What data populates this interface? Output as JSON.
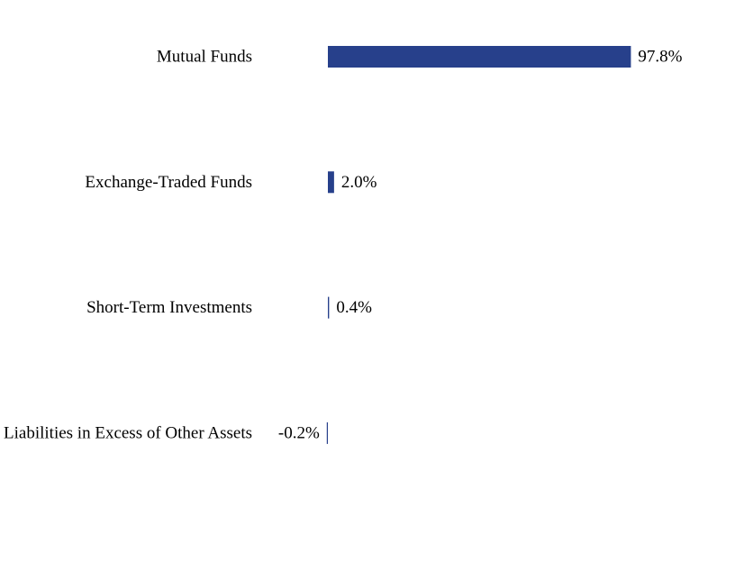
{
  "chart_data": {
    "type": "bar",
    "orientation": "horizontal",
    "categories": [
      "Mutual Funds",
      "Exchange-Traded Funds",
      "Short-Term Investments",
      "Liabilities in Excess of Other Assets"
    ],
    "values": [
      97.8,
      2.0,
      0.4,
      -0.2
    ],
    "value_labels": [
      "97.8%",
      "2.0%",
      "0.4%",
      "-0.2%"
    ],
    "title": "",
    "xlabel": "",
    "ylabel": "",
    "xlim": [
      0,
      100
    ],
    "grid": false,
    "legend": "none",
    "bar_color": "#27408b"
  }
}
